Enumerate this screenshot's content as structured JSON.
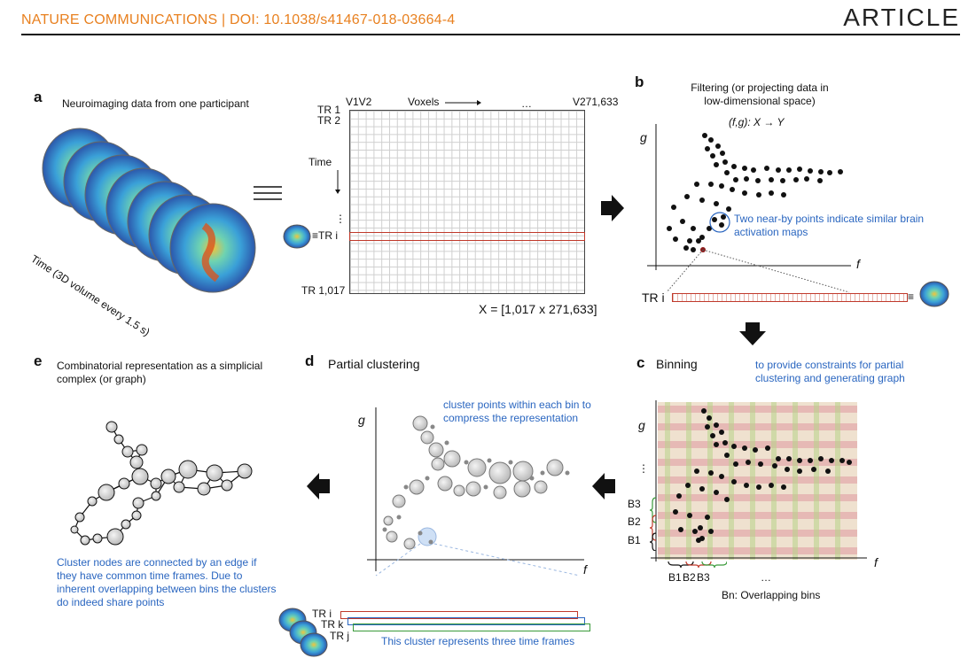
{
  "header": {
    "journal": "NATURE COMMUNICATIONS | DOI: 10.1038/s41467-018-03664-4",
    "article": "ARTICLE"
  },
  "panel_a": {
    "letter": "a",
    "title": "Neuroimaging data from one participant",
    "time_axis": "Time (3D volume every 1.5 s)",
    "tr1": "TR 1",
    "tr2": "TR 2",
    "v1v2": "V1V2",
    "voxels": "Voxels",
    "ellipsis": "…",
    "vlast": "V271,633",
    "time": "Time",
    "tri": "≡TR i",
    "trlast": "TR 1,017",
    "matrix_label": "X = [1,017 x 271,633]"
  },
  "panel_b": {
    "letter": "b",
    "title_line1": "Filtering (or projecting data in",
    "title_line2": "low-dimensional space)",
    "map": "(f,g): X → Y",
    "g": "g",
    "f": "f",
    "note_line1": "Two near-by points indicate similar brain",
    "note_line2": "activation maps",
    "tri": "TR i"
  },
  "panel_c": {
    "letter": "c",
    "title": "Binning",
    "note_line1": "to provide constraints for partial",
    "note_line2": "clustering and generating graph",
    "g": "g",
    "f": "f",
    "dots": "⋮",
    "b3": "B3",
    "b2": "B2",
    "b1": "B1",
    "xb": "B1 B2 B3",
    "xell": "…",
    "caption": "Bn: Overlapping bins"
  },
  "panel_d": {
    "letter": "d",
    "title": "Partial clustering",
    "note_line1": "cluster points within each bin to",
    "note_line2": "compress the representation",
    "g": "g",
    "f": "f",
    "tri": "TR i",
    "trk": "TR k",
    "trj": "TR j",
    "bar_note": "This cluster represents three time frames"
  },
  "panel_e": {
    "letter": "e",
    "title_line1": "Combinatorial representation as a simplicial",
    "title_line2": "complex (or graph)",
    "note": [
      "Cluster nodes are connected by an edge if",
      "they have common time frames. Due to",
      "inherent overlapping between bins the clusters",
      "do indeed share points"
    ]
  },
  "colors": {
    "journal": "#e8801f",
    "annotation_blue": "#2a66c0",
    "red_bar": "#c0392b",
    "blue_bar": "#2a66c0",
    "green_bar": "#3a9a3a"
  }
}
